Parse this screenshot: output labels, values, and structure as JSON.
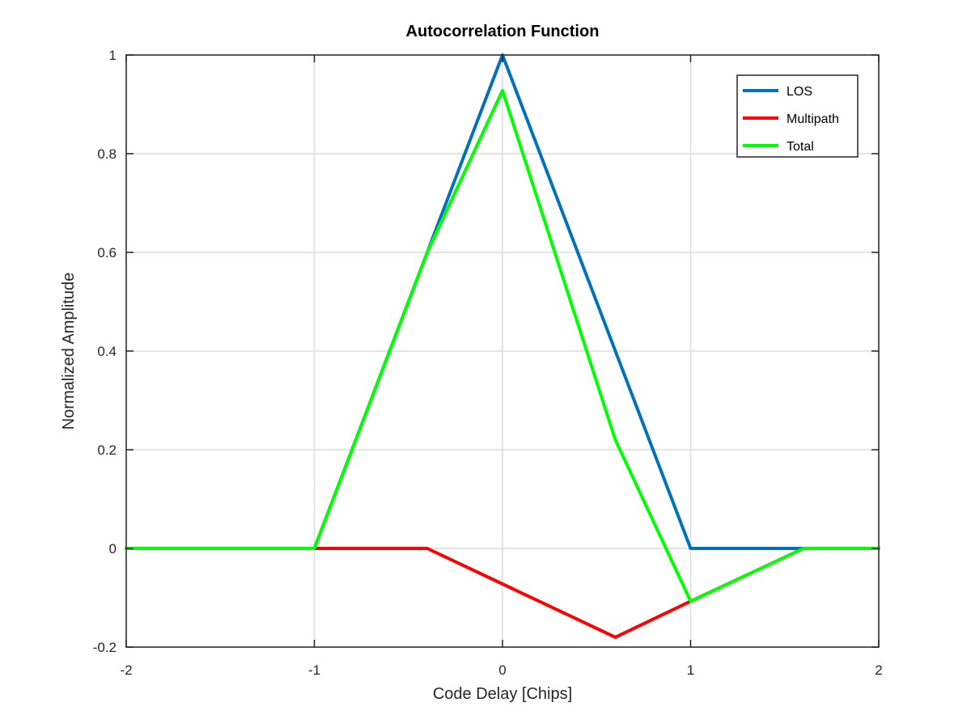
{
  "chart_data": {
    "type": "line",
    "title": "Autocorrelation Function",
    "xlabel": "Code Delay [Chips]",
    "ylabel": "Normalized Amplitude",
    "xlim": [
      -2,
      2
    ],
    "ylim": [
      -0.2,
      1
    ],
    "xticks": [
      -2,
      -1,
      0,
      1,
      2
    ],
    "yticks": [
      -0.2,
      0,
      0.2,
      0.4,
      0.6,
      0.8,
      1
    ],
    "xtick_labels": [
      "-2",
      "-1",
      "0",
      "1",
      "2"
    ],
    "ytick_labels": [
      "-0.2",
      "0",
      "0.2",
      "0.4",
      "0.6",
      "0.8",
      "1"
    ],
    "grid": true,
    "legend_position": "top-right",
    "series": [
      {
        "name": "LOS",
        "color": "#0072bd",
        "points": [
          [
            -2,
            0
          ],
          [
            -1,
            0
          ],
          [
            0,
            1
          ],
          [
            1,
            0
          ],
          [
            2,
            0
          ]
        ]
      },
      {
        "name": "Multipath",
        "color": "#ff0000",
        "points": [
          [
            -2,
            0
          ],
          [
            -0.4,
            0
          ],
          [
            0.6,
            -0.18
          ],
          [
            1,
            -0.107
          ],
          [
            1.6,
            0
          ],
          [
            2,
            0
          ]
        ]
      },
      {
        "name": "Total",
        "color": "#00ff00",
        "points": [
          [
            -2,
            0
          ],
          [
            -1,
            0
          ],
          [
            -0.4,
            0.6
          ],
          [
            0,
            0.928
          ],
          [
            0.6,
            0.22
          ],
          [
            1,
            -0.107
          ],
          [
            1.6,
            0
          ],
          [
            2,
            0
          ]
        ]
      }
    ]
  }
}
